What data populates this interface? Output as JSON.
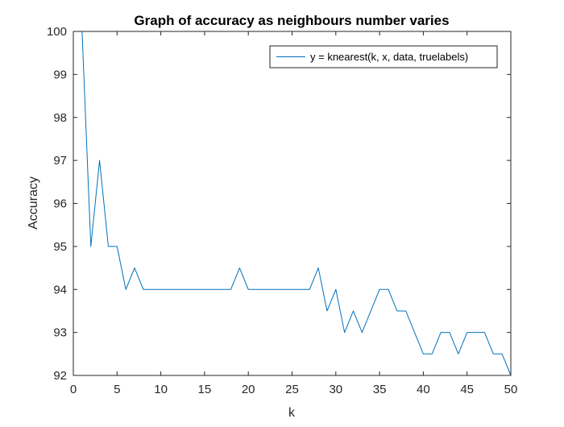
{
  "chart_data": {
    "type": "line",
    "title": "Graph of accuracy as neighbours number varies",
    "xlabel": "k",
    "ylabel": "Accuracy",
    "xlim": [
      0,
      50
    ],
    "ylim": [
      92,
      100
    ],
    "xticks": [
      0,
      5,
      10,
      15,
      20,
      25,
      30,
      35,
      40,
      45,
      50
    ],
    "yticks": [
      92,
      93,
      94,
      95,
      96,
      97,
      98,
      99,
      100
    ],
    "grid": false,
    "legend_position": "top-right",
    "series": [
      {
        "name": "y = knearest(k, x, data, truelabels)",
        "color": "#0072BD",
        "x": [
          1,
          2,
          3,
          4,
          5,
          6,
          7,
          8,
          9,
          10,
          11,
          12,
          13,
          14,
          15,
          16,
          17,
          18,
          19,
          20,
          21,
          22,
          23,
          24,
          25,
          26,
          27,
          28,
          29,
          30,
          31,
          32,
          33,
          34,
          35,
          36,
          37,
          38,
          39,
          40,
          41,
          42,
          43,
          44,
          45,
          46,
          47,
          48,
          49,
          50
        ],
        "y": [
          100,
          95,
          97,
          95,
          95,
          94,
          94.5,
          94,
          94,
          94,
          94,
          94,
          94,
          94,
          94,
          94,
          94,
          94,
          94.5,
          94,
          94,
          94,
          94,
          94,
          94,
          94,
          94,
          94.5,
          93.5,
          94,
          93,
          93.5,
          93,
          93.5,
          94,
          94,
          93.5,
          93.5,
          93,
          92.5,
          92.5,
          93,
          93,
          92.5,
          93,
          93,
          93,
          92.5,
          92.5,
          92
        ]
      }
    ]
  }
}
